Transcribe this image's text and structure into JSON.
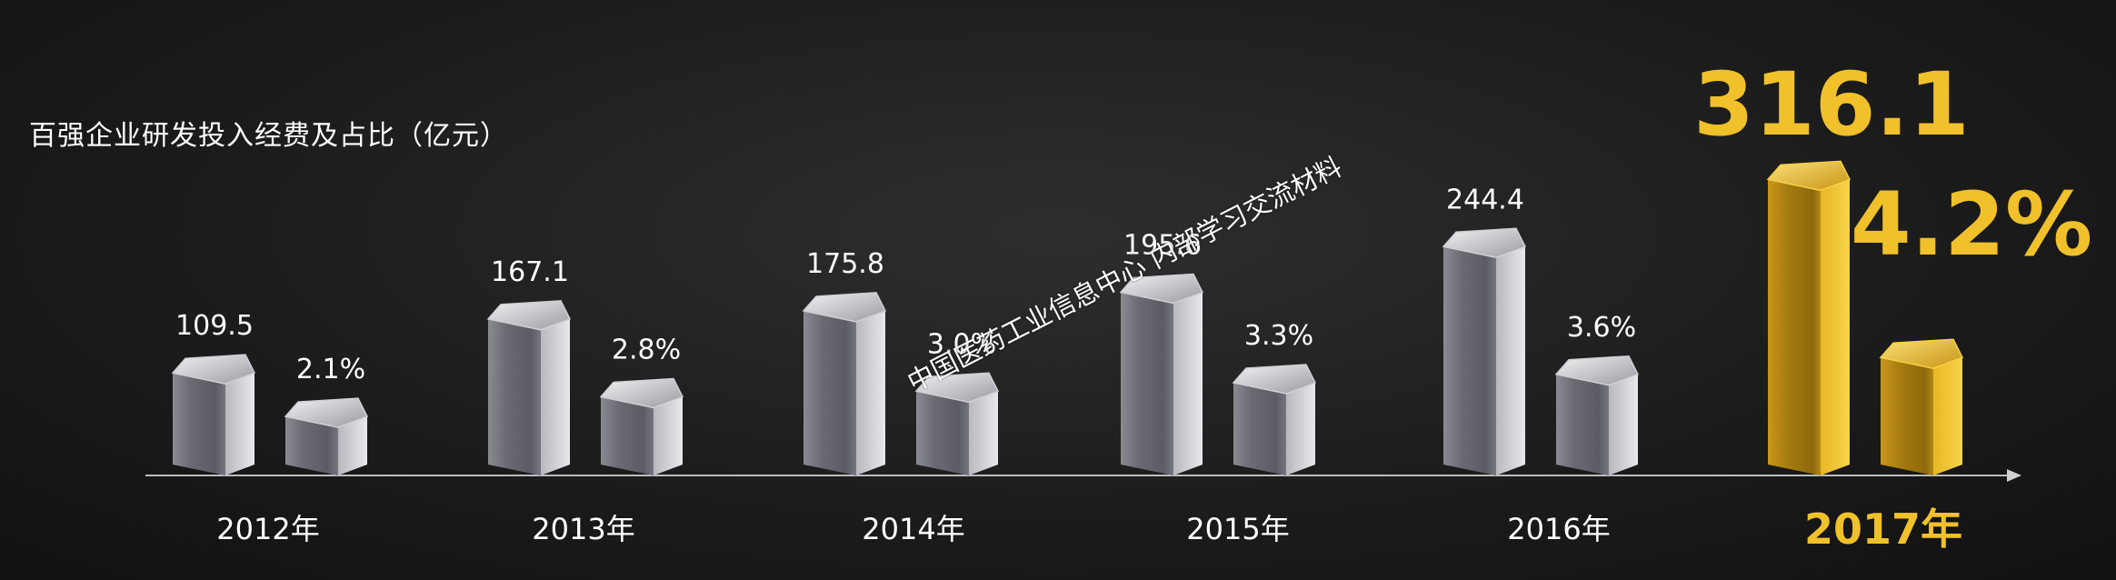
{
  "chart_data": {
    "type": "bar",
    "title": "百强企业研发投入经费及占比（亿元）",
    "categories": [
      "2012年",
      "2013年",
      "2014年",
      "2015年",
      "2016年",
      "2017年"
    ],
    "series": [
      {
        "values": [
          109.5,
          167.1,
          175.8,
          195.6,
          244.4,
          316.1
        ],
        "labels": [
          "109.5",
          "167.1",
          "175.8",
          "195.6",
          "244.4",
          "316.1"
        ]
      },
      {
        "values": [
          2.1,
          2.8,
          3.0,
          3.3,
          3.6,
          4.2
        ],
        "labels": [
          "2.1%",
          "2.8%",
          "3.0%",
          "3.3%",
          "3.6%",
          "4.2%"
        ]
      }
    ],
    "highlight_category": "2017年",
    "colors": {
      "normal": "#6c6c74",
      "highlight": "#d9a81c",
      "highlight_text": "#f0c12a",
      "text": "#ffffff"
    },
    "grid": false,
    "legend": "none"
  },
  "watermark": "中国医药工业信息中心 内部学习交流材料"
}
